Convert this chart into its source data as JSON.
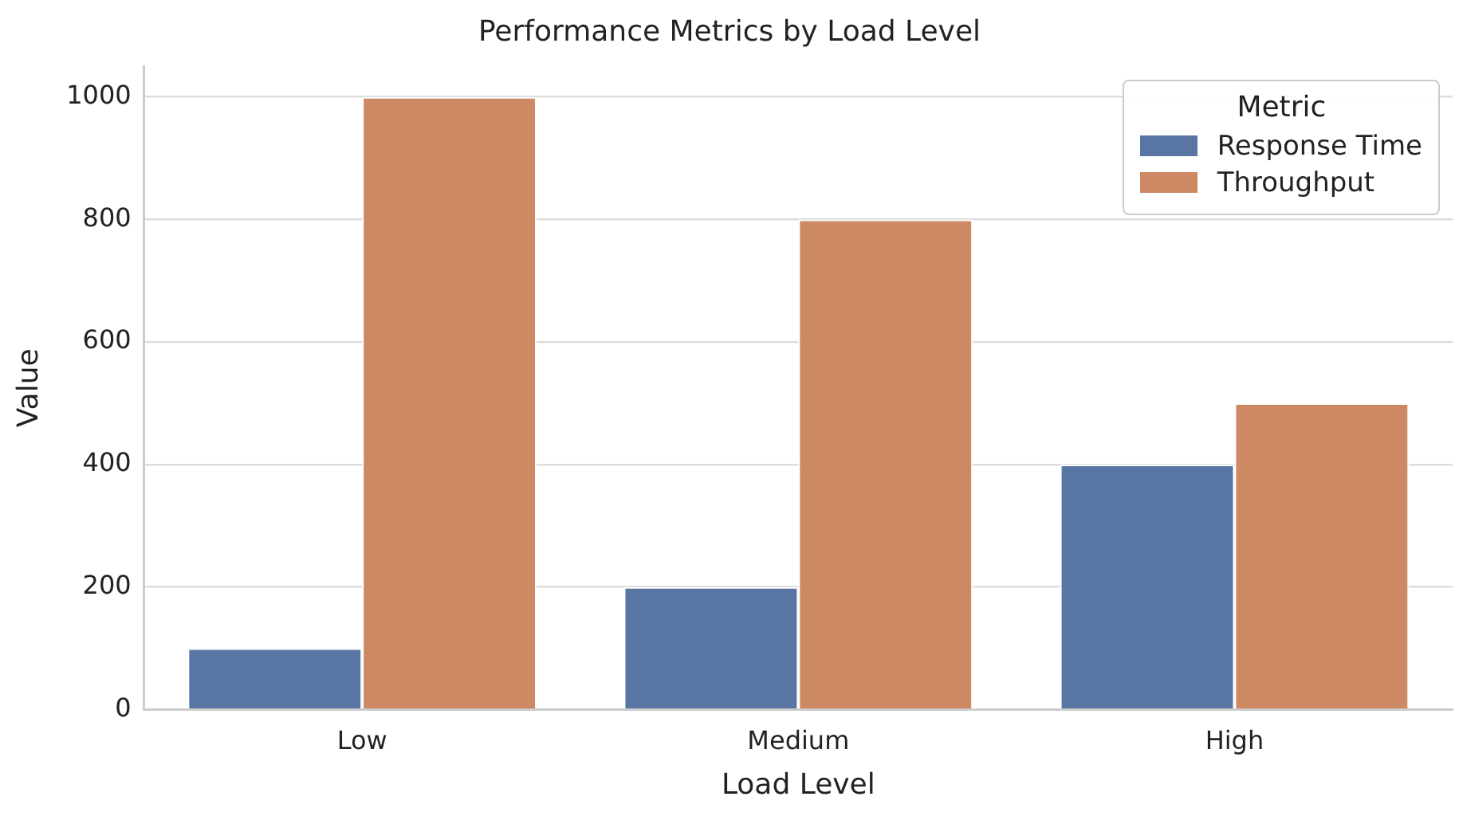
{
  "chart_data": {
    "type": "bar",
    "title": "Performance Metrics by Load Level",
    "xlabel": "Load Level",
    "ylabel": "Value",
    "legend_title": "Metric",
    "categories": [
      "Low",
      "Medium",
      "High"
    ],
    "series": [
      {
        "name": "Response Time",
        "color": "#5975a4",
        "values": [
          100,
          200,
          400
        ]
      },
      {
        "name": "Throughput",
        "color": "#cc8963",
        "values": [
          1000,
          800,
          500
        ]
      }
    ],
    "ylim": [
      0,
      1050
    ],
    "yticks": [
      0,
      200,
      400,
      600,
      800,
      1000
    ],
    "grid": "y",
    "legend": "top right"
  }
}
